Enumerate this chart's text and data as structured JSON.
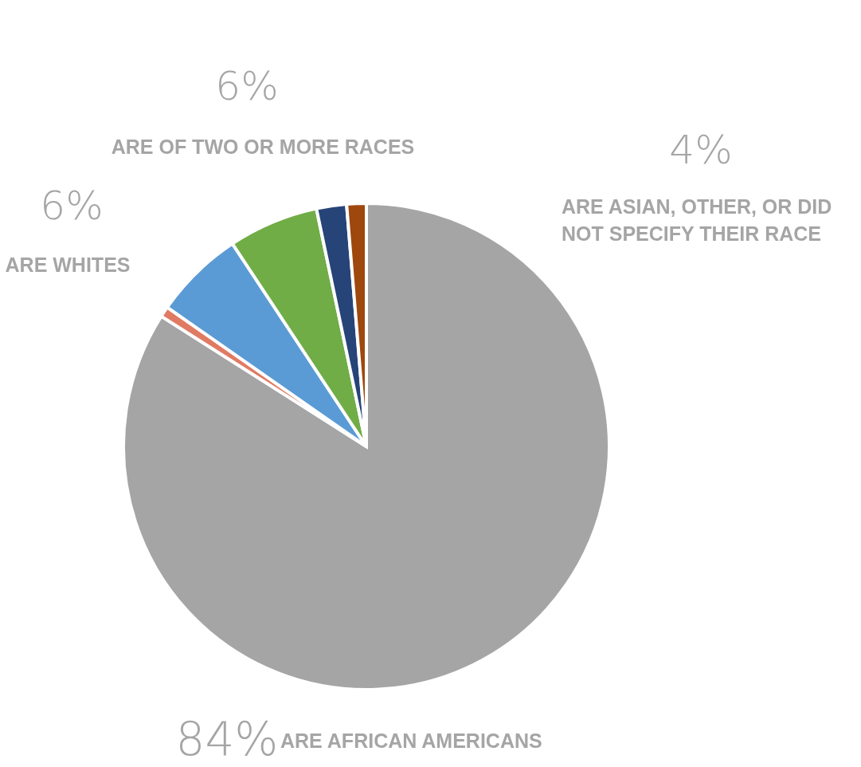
{
  "chart_data": {
    "type": "pie",
    "categories": [
      "ARE AFRICAN AMERICANS",
      null,
      "ARE WHITES",
      "ARE OF TWO OR MORE RACES",
      null,
      null
    ],
    "values": [
      84,
      0.7,
      6,
      6,
      2,
      1.3
    ],
    "colors": [
      "#a5a5a5",
      "#e07b63",
      "#5b9bd5",
      "#70ad47",
      "#264478",
      "#9e480e"
    ],
    "value_labels": [
      "84%",
      null,
      "6%",
      "6%",
      null,
      null
    ],
    "annotations": [
      "4%",
      "ARE ASIAN, OTHER, OR DID\nNOT SPECIFY THEIR RACE"
    ]
  }
}
